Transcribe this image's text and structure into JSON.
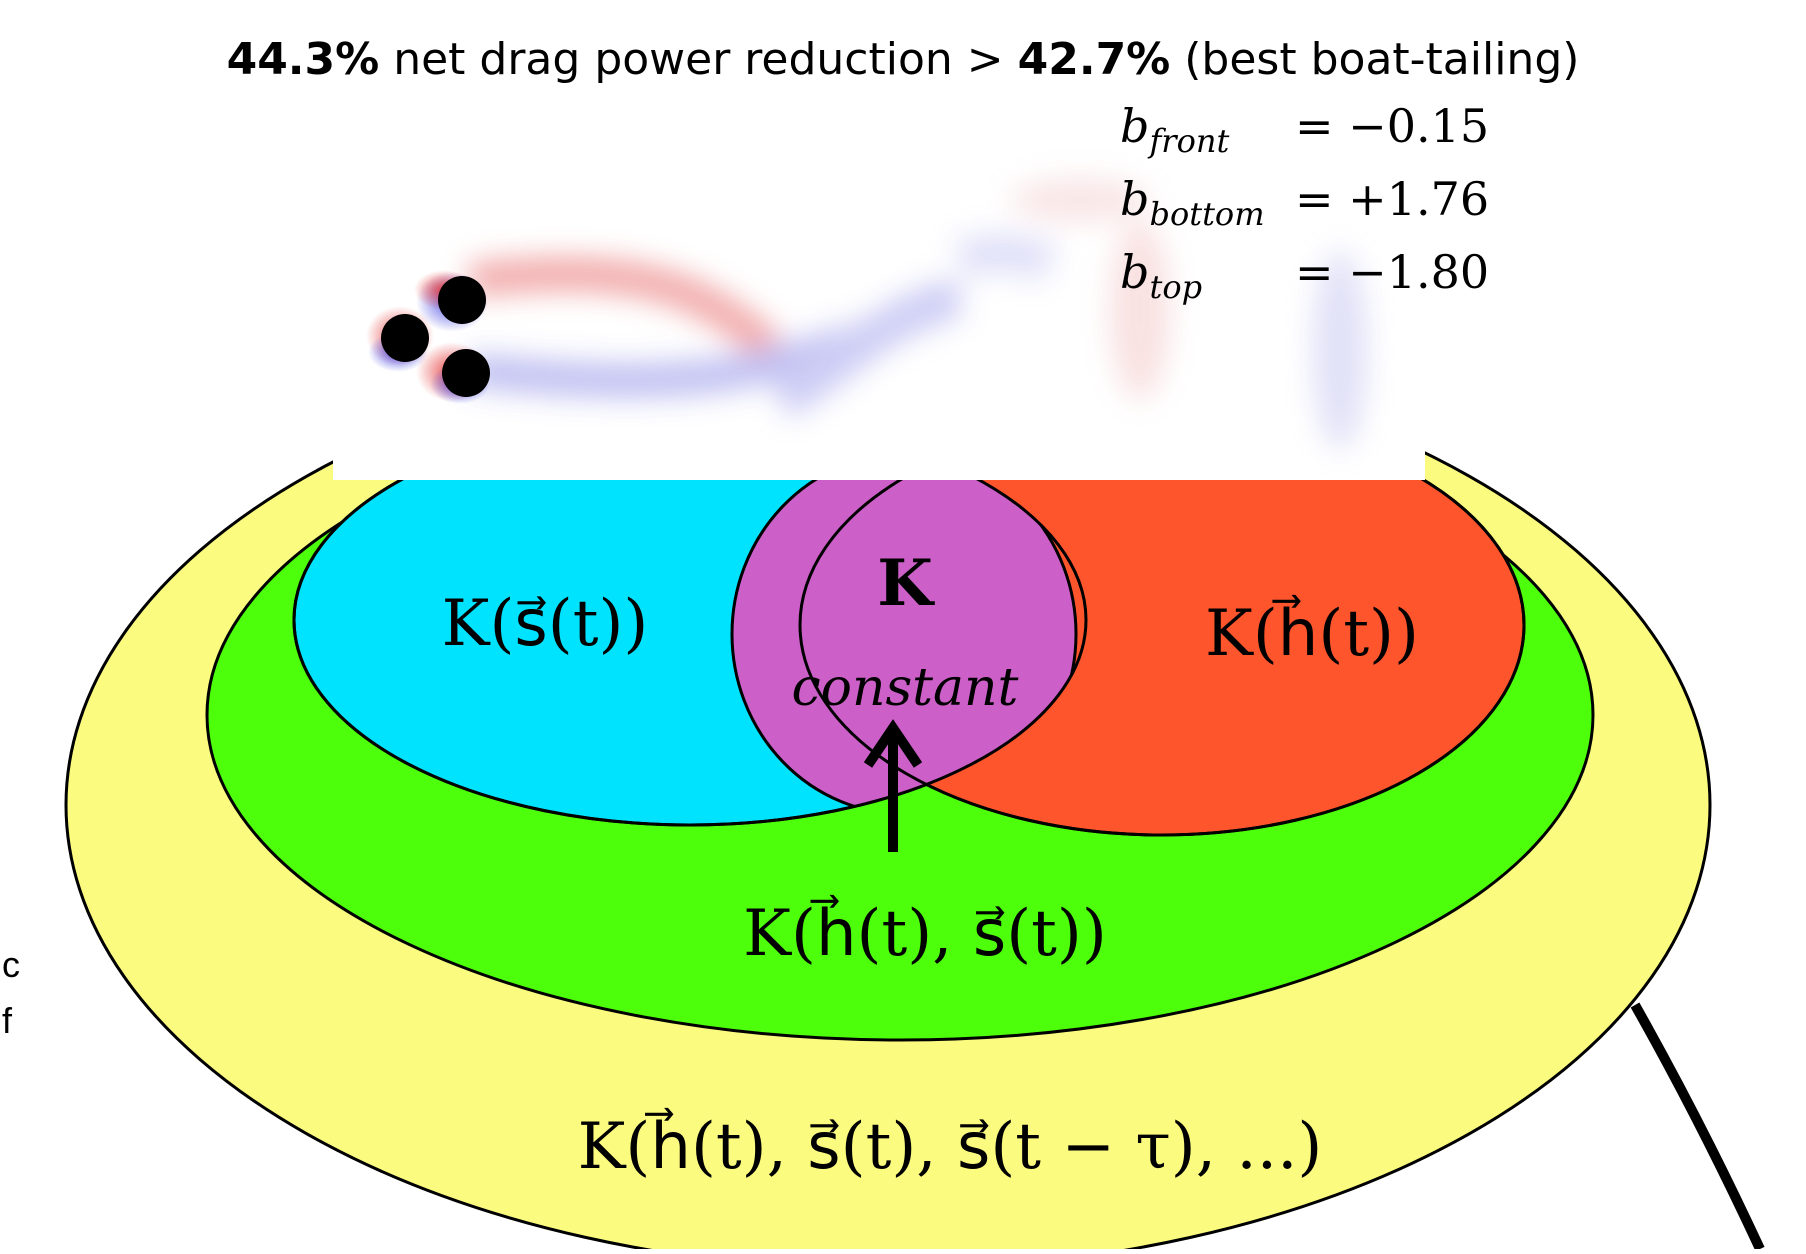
{
  "title": {
    "value_main": "44.3%",
    "text_mid": " net drag power reduction > ",
    "value_compare": "42.7%",
    "text_end": " (best boat-tailing)"
  },
  "parameters": [
    {
      "symbol": "b",
      "subscript": "front",
      "value": "= −0.15"
    },
    {
      "symbol": "b",
      "subscript": "bottom",
      "value": "= +1.76"
    },
    {
      "symbol": "b",
      "subscript": "top",
      "value": "= −1.80"
    }
  ],
  "sets": {
    "outer": {
      "label": "K(h⃗(t), s⃗(t), s⃗(t − τ), ...)",
      "color": "#fbfb80"
    },
    "middle": {
      "label": "K(h⃗(t), s⃗(t))",
      "color": "#4dff0a"
    },
    "left": {
      "label": "K(s⃗(t))",
      "color": "#00e3ff"
    },
    "right": {
      "label": "K(h⃗(t))",
      "color": "#ff552c"
    },
    "center": {
      "label": "K",
      "sublabel": "constant",
      "color": "#cc5fc8"
    }
  },
  "edge_text": [
    "c",
    "f"
  ]
}
